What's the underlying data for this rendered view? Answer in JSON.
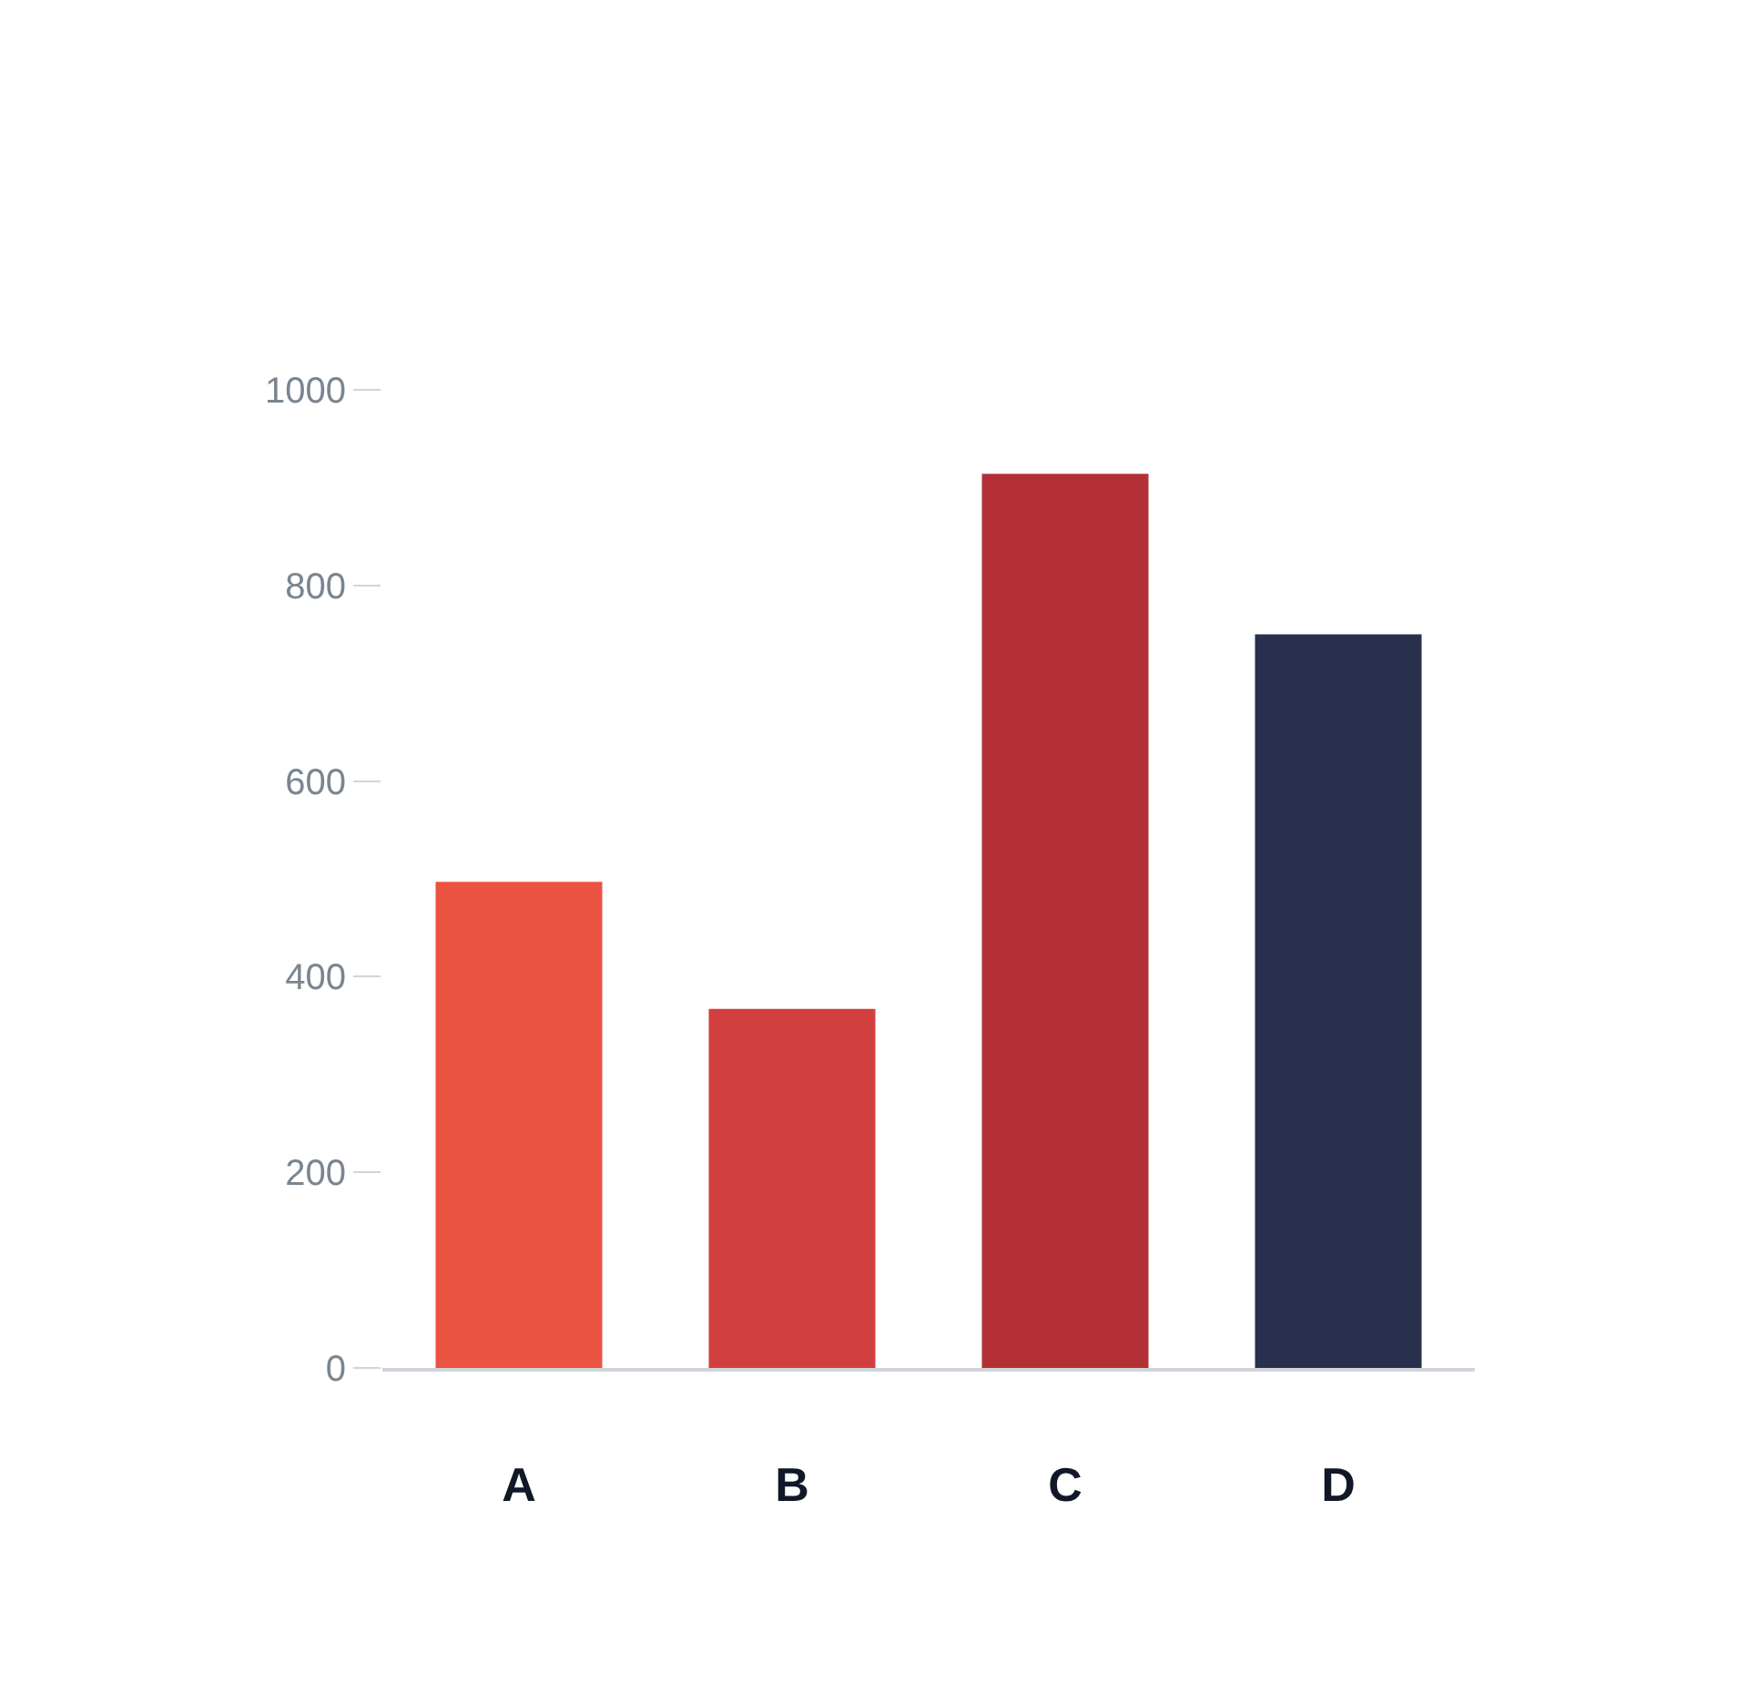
{
  "chart_data": {
    "type": "bar",
    "categories": [
      "A",
      "B",
      "C",
      "D"
    ],
    "values": [
      497,
      367,
      914,
      750
    ],
    "colors": [
      "#eb5342",
      "#d33f3f",
      "#b23036",
      "#29304e"
    ],
    "ylim": [
      0,
      1000
    ],
    "yticks": [
      0,
      200,
      400,
      600,
      800,
      1000
    ]
  }
}
